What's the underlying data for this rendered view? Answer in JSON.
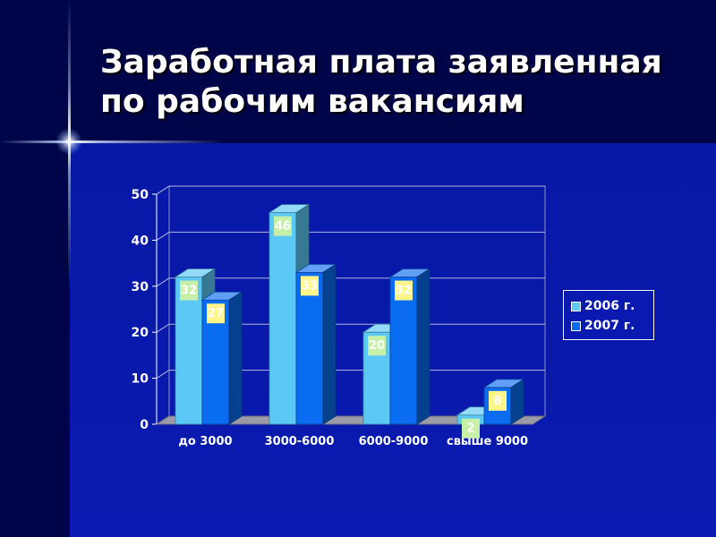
{
  "slide": {
    "title_line1": "Заработная плата заявленная",
    "title_line2": "по рабочим вакансиям"
  },
  "chart_data": {
    "type": "bar",
    "categories": [
      "до 3000",
      "3000-6000",
      "6000-9000",
      "свыше 9000"
    ],
    "series": [
      {
        "name": "2006 г.",
        "values": [
          32,
          46,
          20,
          2
        ],
        "color": "#5bc8f5"
      },
      {
        "name": "2007 г.",
        "values": [
          27,
          33,
          32,
          8
        ],
        "color": "#0a6cf0"
      }
    ],
    "data_labels": {
      "2006 г.": [
        "32",
        "46",
        "20",
        "2"
      ],
      "2007 г.": [
        "27",
        "33",
        "32",
        "8"
      ]
    },
    "y_ticks": [
      "0",
      "10",
      "20",
      "30",
      "40",
      "50"
    ],
    "ylim": [
      0,
      50
    ],
    "grid": true,
    "legend_position": "right",
    "colors": {
      "label_bg_2006": "#c6f0a8",
      "label_bg_2007": "#fff58a"
    }
  }
}
